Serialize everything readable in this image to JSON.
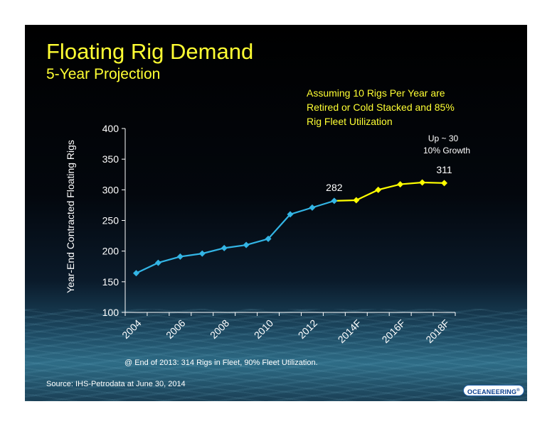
{
  "title": "Floating Rig Demand",
  "subtitle": "5-Year Projection",
  "assumption_lines": [
    "Assuming 10 Rigs Per Year are",
    "Retired or Cold Stacked and 85%",
    "Rig Fleet Utilization"
  ],
  "growth_note": [
    "Up ~ 30",
    "10% Growth"
  ],
  "footnote": "@ End of 2013:  314 Rigs in Fleet, 90% Fleet Utilization.",
  "source": "Source:  IHS-Petrodata at June 30, 2014",
  "logo_text": "OCEANEERING",
  "colors": {
    "title": "#ffff33",
    "historical": "#33b5e5",
    "projected": "#ffff00",
    "axis": "#ffffff",
    "background": "#000000"
  },
  "chart_data": {
    "type": "line",
    "title": "Floating Rig Demand",
    "ylabel": "Year-End Contracted Floating Rigs",
    "xlabel": "",
    "ylim": [
      100,
      400
    ],
    "y_ticks": [
      100,
      150,
      200,
      250,
      300,
      350,
      400
    ],
    "x_tick_labels": [
      "2004",
      "2006",
      "2008",
      "2010",
      "2012",
      "2014F",
      "2016F",
      "2018F"
    ],
    "grid": false,
    "series": [
      {
        "name": "",
        "color": "#33b5e5",
        "x": [
          "2004",
          "2005",
          "2006",
          "2007",
          "2008",
          "2009",
          "2010",
          "2011",
          "2012",
          "2013"
        ],
        "values": [
          164,
          181,
          191,
          196,
          205,
          210,
          220,
          260,
          271,
          282
        ]
      },
      {
        "name": "",
        "color": "#ffff00",
        "x": [
          "2013",
          "2014F",
          "2015F",
          "2016F",
          "2017F",
          "2018F"
        ],
        "values": [
          282,
          283,
          300,
          309,
          312,
          311
        ]
      }
    ],
    "data_labels": [
      {
        "x": "2013",
        "text": "282"
      },
      {
        "x": "2018F",
        "text": "311"
      }
    ]
  }
}
